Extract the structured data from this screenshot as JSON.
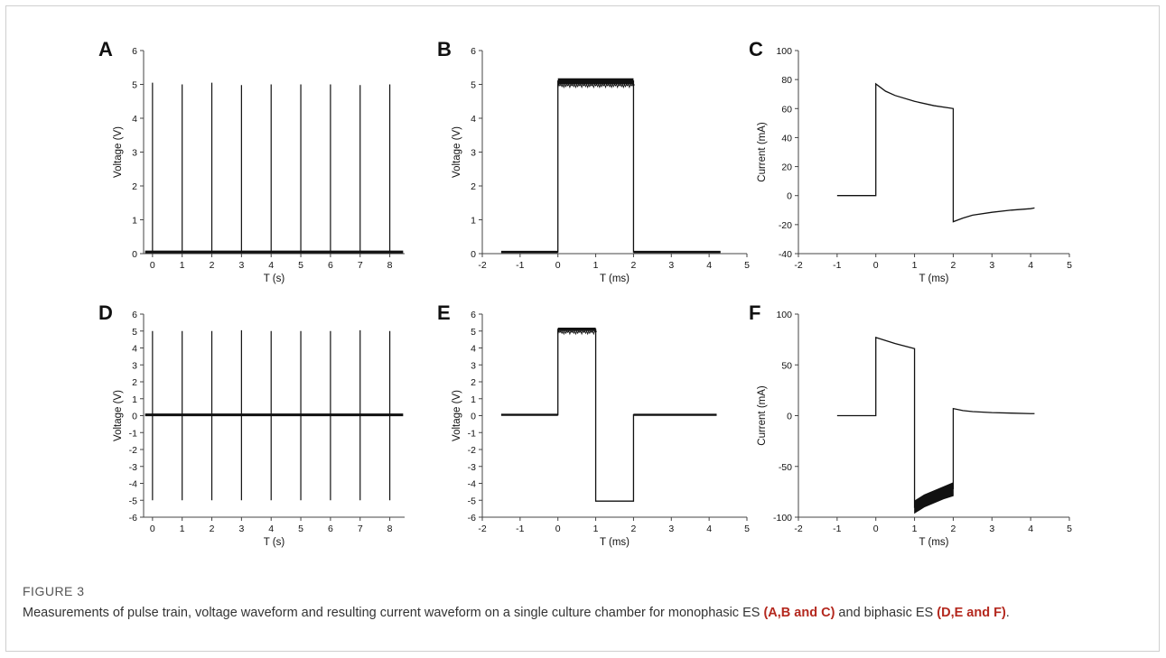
{
  "caption": {
    "figure_label": "FIGURE 3",
    "text_1": "Measurements of pulse train, voltage waveform and resulting current waveform on a single culture chamber for monophasic ES ",
    "ref_1": "(A,B and C)",
    "text_2": " and biphasic ES ",
    "ref_2": "(D,E and F)",
    "text_3": ".",
    "ref_color": "#b4281e"
  },
  "chart_data": [
    {
      "panel": "A",
      "type": "line",
      "xlabel": "T (s)",
      "ylabel": "Voltage (V)",
      "xlim": [
        -0.3,
        8.5
      ],
      "ylim": [
        0,
        6
      ],
      "xticks": [
        0,
        1,
        2,
        3,
        4,
        5,
        6,
        7,
        8
      ],
      "yticks": [
        0,
        1,
        2,
        3,
        4,
        5,
        6
      ],
      "baseline": 0.05,
      "spikes": [
        {
          "x": 0,
          "y_top": 5.05,
          "y_bottom": 0.05
        },
        {
          "x": 1,
          "y_top": 5.0,
          "y_bottom": 0.05
        },
        {
          "x": 2,
          "y_top": 5.05,
          "y_bottom": 0.05
        },
        {
          "x": 3,
          "y_top": 4.98,
          "y_bottom": 0.05
        },
        {
          "x": 4,
          "y_top": 5.0,
          "y_bottom": 0.05
        },
        {
          "x": 5,
          "y_top": 5.0,
          "y_bottom": 0.05
        },
        {
          "x": 6,
          "y_top": 5.0,
          "y_bottom": 0.05
        },
        {
          "x": 7,
          "y_top": 4.98,
          "y_bottom": 0.05
        },
        {
          "x": 8,
          "y_top": 5.0,
          "y_bottom": 0.05
        }
      ]
    },
    {
      "panel": "B",
      "type": "line",
      "xlabel": "T (ms)",
      "ylabel": "Voltage (V)",
      "xlim": [
        -2,
        5
      ],
      "ylim": [
        0,
        6
      ],
      "xticks": [
        -2,
        -1,
        0,
        1,
        2,
        3,
        4,
        5
      ],
      "yticks": [
        0,
        1,
        2,
        3,
        4,
        5,
        6
      ],
      "x": [
        -1.5,
        0,
        0,
        2,
        2,
        4.3
      ],
      "y": [
        0.05,
        0.05,
        5.1,
        5.1,
        0.05,
        0.05
      ],
      "noise_band": {
        "x_start": 0,
        "x_end": 2,
        "y_low": 5.0,
        "y_high": 5.18
      }
    },
    {
      "panel": "C",
      "type": "line",
      "xlabel": "T (ms)",
      "ylabel": "Current (mA)",
      "xlim": [
        -2,
        5
      ],
      "ylim": [
        -40,
        100
      ],
      "xticks": [
        -2,
        -1,
        0,
        1,
        2,
        3,
        4,
        5
      ],
      "yticks": [
        -40,
        -20,
        0,
        20,
        40,
        60,
        80,
        100
      ],
      "x": [
        -1,
        0,
        0,
        0.25,
        0.5,
        1,
        1.5,
        2,
        2,
        2.25,
        2.5,
        3,
        3.5,
        4,
        4.1
      ],
      "y": [
        0,
        0,
        77,
        72,
        69,
        65,
        62,
        60,
        -18,
        -15.5,
        -13.5,
        -11.5,
        -10,
        -9,
        -8.5
      ]
    },
    {
      "panel": "D",
      "type": "line",
      "xlabel": "T (s)",
      "ylabel": "Voltage (V)",
      "xlim": [
        -0.3,
        8.5
      ],
      "ylim": [
        -6,
        6
      ],
      "xticks": [
        0,
        1,
        2,
        3,
        4,
        5,
        6,
        7,
        8
      ],
      "yticks": [
        -6,
        -5,
        -4,
        -3,
        -2,
        -1,
        0,
        1,
        2,
        3,
        4,
        5,
        6
      ],
      "baseline": 0.05,
      "spikes": [
        {
          "x": 0,
          "y_top": 5.0,
          "y_bottom": -5.0
        },
        {
          "x": 1,
          "y_top": 5.0,
          "y_bottom": -5.0
        },
        {
          "x": 2,
          "y_top": 5.0,
          "y_bottom": -5.0
        },
        {
          "x": 3,
          "y_top": 5.05,
          "y_bottom": -5.0
        },
        {
          "x": 4,
          "y_top": 5.0,
          "y_bottom": -5.0
        },
        {
          "x": 5,
          "y_top": 5.0,
          "y_bottom": -5.0
        },
        {
          "x": 6,
          "y_top": 5.0,
          "y_bottom": -5.0
        },
        {
          "x": 7,
          "y_top": 5.05,
          "y_bottom": -5.0
        },
        {
          "x": 8,
          "y_top": 5.0,
          "y_bottom": -5.0
        }
      ]
    },
    {
      "panel": "E",
      "type": "line",
      "xlabel": "T (ms)",
      "ylabel": "Voltage (V)",
      "xlim": [
        -2,
        5
      ],
      "ylim": [
        -6,
        6
      ],
      "xticks": [
        -2,
        -1,
        0,
        1,
        2,
        3,
        4,
        5
      ],
      "yticks": [
        -6,
        -5,
        -4,
        -3,
        -2,
        -1,
        0,
        1,
        2,
        3,
        4,
        5,
        6
      ],
      "x": [
        -1.5,
        0,
        0,
        1,
        1,
        2,
        2,
        4.2
      ],
      "y": [
        0.05,
        0.05,
        5.1,
        5.1,
        -5.05,
        -5.05,
        0.05,
        0.05
      ],
      "noise_band": {
        "x_start": 0,
        "x_end": 1,
        "y_low": 5.0,
        "y_high": 5.2
      }
    },
    {
      "panel": "F",
      "type": "line",
      "xlabel": "T (ms)",
      "ylabel": "Current (mA)",
      "xlim": [
        -2,
        5
      ],
      "ylim": [
        -100,
        100
      ],
      "xticks": [
        -2,
        -1,
        0,
        1,
        2,
        3,
        4,
        5
      ],
      "yticks": [
        -100,
        -50,
        0,
        50,
        100
      ],
      "x": [
        -1,
        0,
        0,
        0.25,
        0.5,
        1,
        1,
        1.25,
        1.5,
        2,
        2,
        2.25,
        2.5,
        3,
        3.5,
        4,
        4.1
      ],
      "y": [
        0,
        0,
        77,
        74,
        71,
        66,
        -90,
        -84,
        -80,
        -72,
        7,
        5,
        4,
        3,
        2.5,
        2,
        2
      ],
      "noise_band": {
        "x": [
          1,
          1.25,
          1.5,
          1.75,
          2
        ],
        "y_low": [
          -96,
          -90,
          -86,
          -82,
          -79
        ],
        "y_high": [
          -84,
          -78,
          -74,
          -70,
          -66
        ]
      }
    }
  ]
}
